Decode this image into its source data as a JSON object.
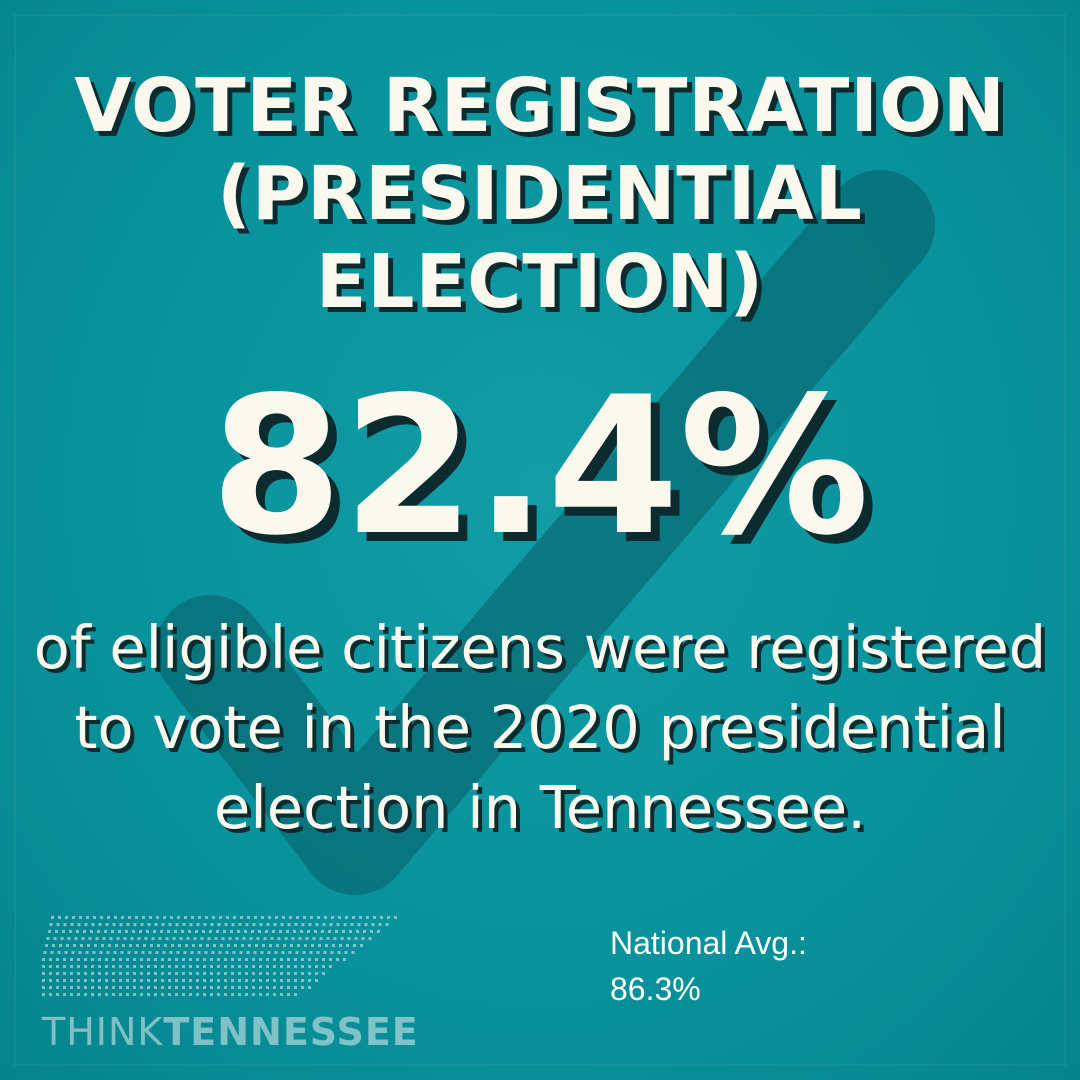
{
  "title": {
    "line1": "VOTER REGISTRATION",
    "line2": "(PRESIDENTIAL",
    "line3": "ELECTION)"
  },
  "stat": {
    "value": "82.4%"
  },
  "description": {
    "line1": "of eligible citizens were registered",
    "line2": "to vote in the 2020 presidential",
    "line3": "election in Tennessee."
  },
  "national_avg": {
    "label": "National Avg.:",
    "value": "86.3%"
  },
  "logo": {
    "think": "THINK",
    "tennessee": "TENNESSEE",
    "icon": "tennessee-dot-grid-icon"
  },
  "colors": {
    "background": "#07949d",
    "text": "#fbf8ee",
    "shadow": "#0b2b2f",
    "checkmark": "#0a5d66"
  }
}
